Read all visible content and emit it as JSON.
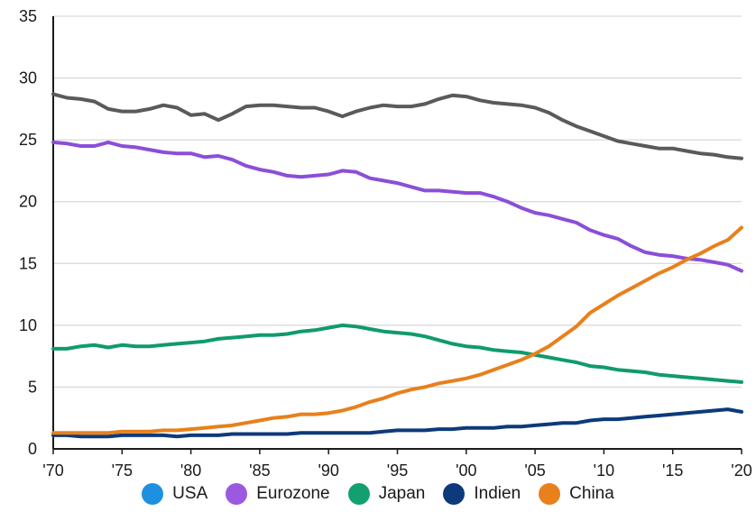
{
  "chart_data": {
    "type": "line",
    "title": "",
    "xlabel": "",
    "ylabel": "",
    "ylim": [
      0,
      35
    ],
    "yticks": [
      0,
      5,
      10,
      15,
      20,
      25,
      30,
      35
    ],
    "xlim": [
      1970,
      2020
    ],
    "xticks": [
      {
        "value": 1970,
        "label": "'70"
      },
      {
        "value": 1975,
        "label": "'75"
      },
      {
        "value": 1980,
        "label": "'80"
      },
      {
        "value": 1985,
        "label": "'85"
      },
      {
        "value": 1990,
        "label": "'90"
      },
      {
        "value": 1995,
        "label": "'95"
      },
      {
        "value": 2000,
        "label": "'00"
      },
      {
        "value": 2005,
        "label": "'05"
      },
      {
        "value": 2010,
        "label": "'10"
      },
      {
        "value": 2015,
        "label": "'15"
      },
      {
        "value": 2020,
        "label": "'20"
      }
    ],
    "grid": "horizontal",
    "legend_position": "bottom",
    "x": [
      1970,
      1971,
      1972,
      1973,
      1974,
      1975,
      1976,
      1977,
      1978,
      1979,
      1980,
      1981,
      1982,
      1983,
      1984,
      1985,
      1986,
      1987,
      1988,
      1989,
      1990,
      1991,
      1992,
      1993,
      1994,
      1995,
      1996,
      1997,
      1998,
      1999,
      2000,
      2001,
      2002,
      2003,
      2004,
      2005,
      2006,
      2007,
      2008,
      2009,
      2010,
      2011,
      2012,
      2013,
      2014,
      2015,
      2016,
      2017,
      2018,
      2019,
      2020
    ],
    "series": [
      {
        "name": "USA",
        "color": "#5a5a5a",
        "legend_color": "#1e90e0",
        "values": [
          28.7,
          28.4,
          28.3,
          28.1,
          27.5,
          27.3,
          27.3,
          27.5,
          27.8,
          27.6,
          27.0,
          27.1,
          26.6,
          27.1,
          27.7,
          27.8,
          27.8,
          27.7,
          27.6,
          27.6,
          27.3,
          26.9,
          27.3,
          27.6,
          27.8,
          27.7,
          27.7,
          27.9,
          28.3,
          28.6,
          28.5,
          28.2,
          28.0,
          27.9,
          27.8,
          27.6,
          27.2,
          26.6,
          26.1,
          25.7,
          25.3,
          24.9,
          24.7,
          24.5,
          24.3,
          24.3,
          24.1,
          23.9,
          23.8,
          23.6,
          23.5
        ]
      },
      {
        "name": "Eurozone",
        "color": "#8a4fd8",
        "legend_color": "#9b59e0",
        "values": [
          24.8,
          24.7,
          24.5,
          24.5,
          24.8,
          24.5,
          24.4,
          24.2,
          24.0,
          23.9,
          23.9,
          23.6,
          23.7,
          23.4,
          22.9,
          22.6,
          22.4,
          22.1,
          22.0,
          22.1,
          22.2,
          22.5,
          22.4,
          21.9,
          21.7,
          21.5,
          21.2,
          20.9,
          20.9,
          20.8,
          20.7,
          20.7,
          20.4,
          20.0,
          19.5,
          19.1,
          18.9,
          18.6,
          18.3,
          17.7,
          17.3,
          17.0,
          16.4,
          15.9,
          15.7,
          15.6,
          15.4,
          15.3,
          15.1,
          14.9,
          14.4
        ]
      },
      {
        "name": "Japan",
        "color": "#0f9b6a",
        "legend_color": "#12a070",
        "values": [
          8.1,
          8.1,
          8.3,
          8.4,
          8.2,
          8.4,
          8.3,
          8.3,
          8.4,
          8.5,
          8.6,
          8.7,
          8.9,
          9.0,
          9.1,
          9.2,
          9.2,
          9.3,
          9.5,
          9.6,
          9.8,
          10.0,
          9.9,
          9.7,
          9.5,
          9.4,
          9.3,
          9.1,
          8.8,
          8.5,
          8.3,
          8.2,
          8.0,
          7.9,
          7.8,
          7.6,
          7.4,
          7.2,
          7.0,
          6.7,
          6.6,
          6.4,
          6.3,
          6.2,
          6.0,
          5.9,
          5.8,
          5.7,
          5.6,
          5.5,
          5.4
        ]
      },
      {
        "name": "Indien",
        "color": "#0d3a7a",
        "legend_color": "#0d3a7a",
        "values": [
          1.1,
          1.1,
          1.0,
          1.0,
          1.0,
          1.1,
          1.1,
          1.1,
          1.1,
          1.0,
          1.1,
          1.1,
          1.1,
          1.2,
          1.2,
          1.2,
          1.2,
          1.2,
          1.3,
          1.3,
          1.3,
          1.3,
          1.3,
          1.3,
          1.4,
          1.5,
          1.5,
          1.5,
          1.6,
          1.6,
          1.7,
          1.7,
          1.7,
          1.8,
          1.8,
          1.9,
          2.0,
          2.1,
          2.1,
          2.3,
          2.4,
          2.4,
          2.5,
          2.6,
          2.7,
          2.8,
          2.9,
          3.0,
          3.1,
          3.2,
          3.0
        ]
      },
      {
        "name": "China",
        "color": "#e8801c",
        "legend_color": "#e8801c",
        "values": [
          1.3,
          1.3,
          1.3,
          1.3,
          1.3,
          1.4,
          1.4,
          1.4,
          1.5,
          1.5,
          1.6,
          1.7,
          1.8,
          1.9,
          2.1,
          2.3,
          2.5,
          2.6,
          2.8,
          2.8,
          2.9,
          3.1,
          3.4,
          3.8,
          4.1,
          4.5,
          4.8,
          5.0,
          5.3,
          5.5,
          5.7,
          6.0,
          6.4,
          6.8,
          7.2,
          7.7,
          8.3,
          9.1,
          9.9,
          11.0,
          11.7,
          12.4,
          13.0,
          13.6,
          14.2,
          14.7,
          15.3,
          15.8,
          16.4,
          16.9,
          17.9
        ]
      }
    ]
  }
}
